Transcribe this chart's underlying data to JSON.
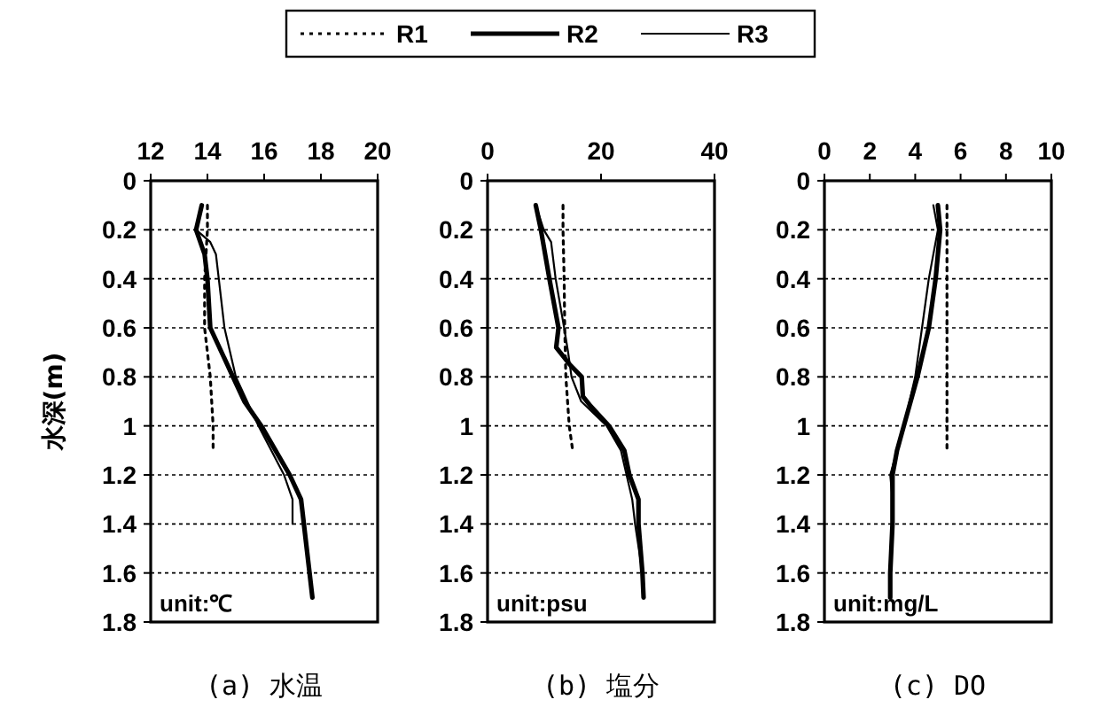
{
  "chart_data": [
    {
      "type": "line",
      "title": "(a) 水温",
      "ylabel": "水深(m)",
      "xlim": [
        12,
        20
      ],
      "xticks": [
        12,
        14,
        16,
        18,
        20
      ],
      "ylim": [
        1.8,
        0
      ],
      "yticks": [
        0,
        0.2,
        0.4,
        0.6,
        0.8,
        1,
        1.2,
        1.4,
        1.6,
        1.8
      ],
      "grid": "y",
      "legend": "top",
      "annotations": [
        "unit:℃"
      ],
      "series": [
        {
          "name": "R1",
          "color": "#000000",
          "line_style": "dotted",
          "x": [
            14.0,
            14.0,
            13.9,
            13.9,
            14.1,
            14.2,
            14.2
          ],
          "values": [
            0.1,
            0.2,
            0.4,
            0.6,
            0.8,
            1.0,
            1.1
          ]
        },
        {
          "name": "R2",
          "color": "#000000",
          "line_style": "solid",
          "x": [
            13.8,
            13.6,
            13.9,
            14.0,
            14.1,
            14.9,
            15.3,
            15.9,
            16.4,
            16.9,
            17.3,
            17.4,
            17.6,
            17.7
          ],
          "values": [
            0.1,
            0.2,
            0.3,
            0.4,
            0.6,
            0.8,
            0.9,
            1.0,
            1.1,
            1.2,
            1.3,
            1.4,
            1.6,
            1.7
          ]
        },
        {
          "name": "R3",
          "color": "#000000",
          "line_style": "solid",
          "x": [
            13.8,
            13.6,
            14.1,
            14.3,
            14.4,
            14.6,
            15.0,
            15.8,
            16.7,
            17.0,
            17.0
          ],
          "values": [
            0.1,
            0.2,
            0.25,
            0.3,
            0.4,
            0.6,
            0.8,
            1.0,
            1.2,
            1.3,
            1.4
          ]
        }
      ]
    },
    {
      "type": "line",
      "title": "(b) 塩分",
      "xlim": [
        0,
        40
      ],
      "xticks": [
        0,
        20,
        40
      ],
      "ylim": [
        1.8,
        0
      ],
      "yticks": [
        0,
        0.2,
        0.4,
        0.6,
        0.8,
        1,
        1.2,
        1.4,
        1.6,
        1.8
      ],
      "grid": "y",
      "annotations": [
        "unit:psu"
      ],
      "series": [
        {
          "color": "#000000",
          "line_style": "dotted",
          "x": [
            13.3,
            13.3,
            13.5,
            13.6,
            13.8,
            14.4,
            15.0
          ],
          "values": [
            0.1,
            0.2,
            0.4,
            0.6,
            0.8,
            1.0,
            1.1
          ]
        },
        {
          "color": "#000000",
          "line_style": "solid",
          "x": [
            8.5,
            9.4,
            10.9,
            12.5,
            12.1,
            14.5,
            16.6,
            16.8,
            18.2,
            21.4,
            24.1,
            25.0,
            26.6,
            26.6,
            27.3,
            27.5
          ],
          "values": [
            0.1,
            0.2,
            0.4,
            0.6,
            0.68,
            0.75,
            0.8,
            0.88,
            0.92,
            1.0,
            1.1,
            1.2,
            1.3,
            1.4,
            1.6,
            1.7
          ]
        },
        {
          "color": "#000000",
          "line_style": "solid",
          "x": [
            8.5,
            9.9,
            11.2,
            12.0,
            13.5,
            14.2,
            14.8,
            16.5,
            21.0,
            23.5,
            24.5,
            25.5,
            26.0,
            27.3,
            27.5
          ],
          "values": [
            0.1,
            0.2,
            0.25,
            0.4,
            0.6,
            0.7,
            0.8,
            0.9,
            1.0,
            1.1,
            1.2,
            1.3,
            1.4,
            1.6,
            1.7
          ]
        }
      ]
    },
    {
      "type": "line",
      "title": "(c) DO",
      "xlim": [
        0,
        10
      ],
      "xticks": [
        0,
        2,
        4,
        6,
        8,
        10
      ],
      "ylim": [
        1.8,
        0
      ],
      "yticks": [
        0,
        0.2,
        0.4,
        0.6,
        0.8,
        1,
        1.2,
        1.4,
        1.6,
        1.8
      ],
      "grid": "y",
      "annotations": [
        "unit:mg/L"
      ],
      "series": [
        {
          "color": "#000000",
          "line_style": "dotted",
          "x": [
            5.4,
            5.4,
            5.4,
            5.4,
            5.4,
            5.4,
            5.4
          ],
          "values": [
            0.1,
            0.2,
            0.4,
            0.6,
            0.8,
            1.0,
            1.1
          ]
        },
        {
          "color": "#000000",
          "line_style": "solid",
          "x": [
            5.0,
            5.1,
            4.9,
            4.6,
            4.1,
            3.5,
            3.2,
            3.0,
            3.0,
            2.9,
            2.9
          ],
          "values": [
            0.1,
            0.2,
            0.4,
            0.6,
            0.8,
            1.0,
            1.1,
            1.2,
            1.4,
            1.6,
            1.7
          ]
        },
        {
          "color": "#000000",
          "line_style": "solid",
          "x": [
            4.8,
            5.0,
            4.6,
            4.3,
            4.0,
            3.5,
            2.9,
            3.0,
            3.0,
            2.9
          ],
          "values": [
            0.1,
            0.2,
            0.4,
            0.6,
            0.8,
            1.0,
            1.2,
            1.3,
            1.4,
            1.6
          ]
        }
      ]
    }
  ]
}
